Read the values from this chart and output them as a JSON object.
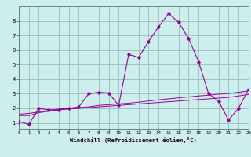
{
  "xlabel": "Windchill (Refroidissement éolien,°C)",
  "background_color": "#cceeed",
  "line_color": "#990099",
  "grid_color": "#99bbbb",
  "x_data": [
    0,
    1,
    2,
    3,
    4,
    5,
    6,
    7,
    8,
    9,
    10,
    11,
    12,
    13,
    14,
    15,
    16,
    17,
    18,
    19,
    20,
    21,
    22,
    23
  ],
  "y_main": [
    1.1,
    0.9,
    2.0,
    1.9,
    1.9,
    2.0,
    2.1,
    3.0,
    3.1,
    3.05,
    2.2,
    5.7,
    5.5,
    6.6,
    7.6,
    8.5,
    7.9,
    6.8,
    5.2,
    3.0,
    2.5,
    1.2,
    2.0,
    3.3
  ],
  "y_line1": [
    1.5,
    1.5,
    1.7,
    1.8,
    1.9,
    1.95,
    2.0,
    2.05,
    2.1,
    2.15,
    2.2,
    2.25,
    2.3,
    2.35,
    2.4,
    2.45,
    2.5,
    2.55,
    2.6,
    2.65,
    2.7,
    2.75,
    2.85,
    2.95
  ],
  "y_line2": [
    1.6,
    1.65,
    1.75,
    1.85,
    1.95,
    2.0,
    2.05,
    2.1,
    2.2,
    2.25,
    2.3,
    2.35,
    2.42,
    2.5,
    2.58,
    2.65,
    2.72,
    2.78,
    2.85,
    2.9,
    2.97,
    3.02,
    3.1,
    3.2
  ],
  "ylim": [
    0.6,
    9.0
  ],
  "xlim": [
    0,
    23
  ],
  "yticks": [
    1,
    2,
    3,
    4,
    5,
    6,
    7,
    8
  ],
  "xticks": [
    0,
    1,
    2,
    3,
    4,
    5,
    6,
    7,
    8,
    9,
    10,
    11,
    12,
    13,
    14,
    15,
    16,
    17,
    18,
    19,
    20,
    21,
    22,
    23
  ]
}
